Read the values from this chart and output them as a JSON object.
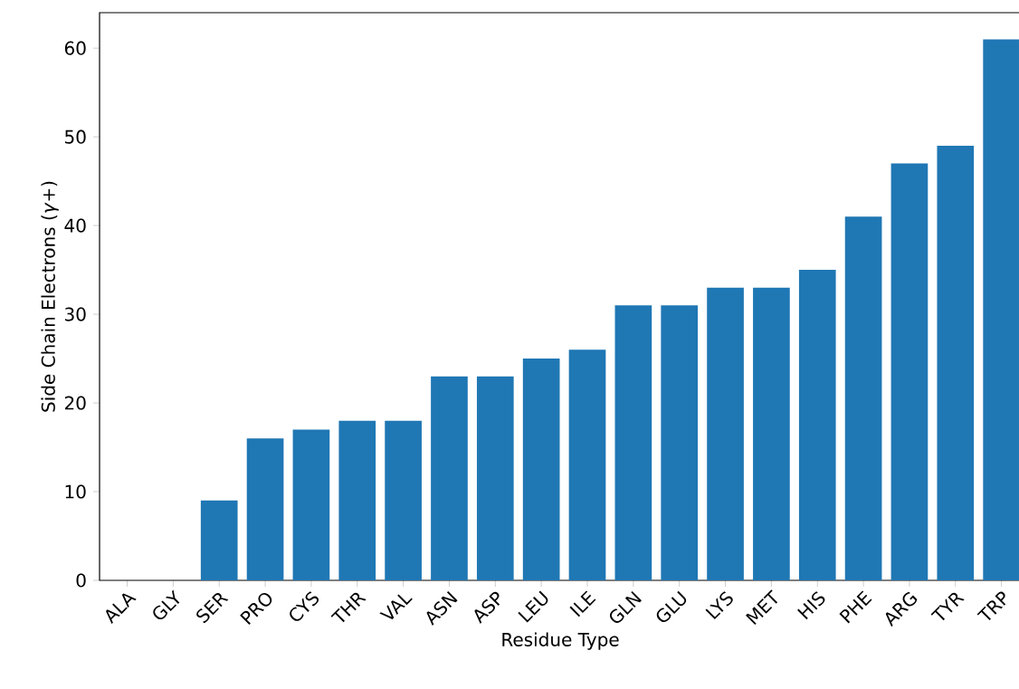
{
  "chart_data": {
    "type": "bar",
    "xlabel": "Residue Type",
    "ylabel": "Side Chain Electrons (*γ*+)",
    "categories": [
      "ALA",
      "GLY",
      "SER",
      "PRO",
      "CYS",
      "THR",
      "VAL",
      "ASN",
      "ASP",
      "LEU",
      "ILE",
      "GLN",
      "GLU",
      "LYS",
      "MET",
      "HIS",
      "PHE",
      "ARG",
      "TYR",
      "TRP"
    ],
    "values": [
      0,
      0,
      9,
      16,
      17,
      18,
      18,
      23,
      23,
      25,
      26,
      31,
      31,
      33,
      33,
      35,
      41,
      47,
      49,
      61
    ],
    "color": "#1f77b4",
    "ylim": [
      0,
      64
    ],
    "yticks": [
      0,
      10,
      20,
      30,
      40,
      50,
      60
    ]
  }
}
